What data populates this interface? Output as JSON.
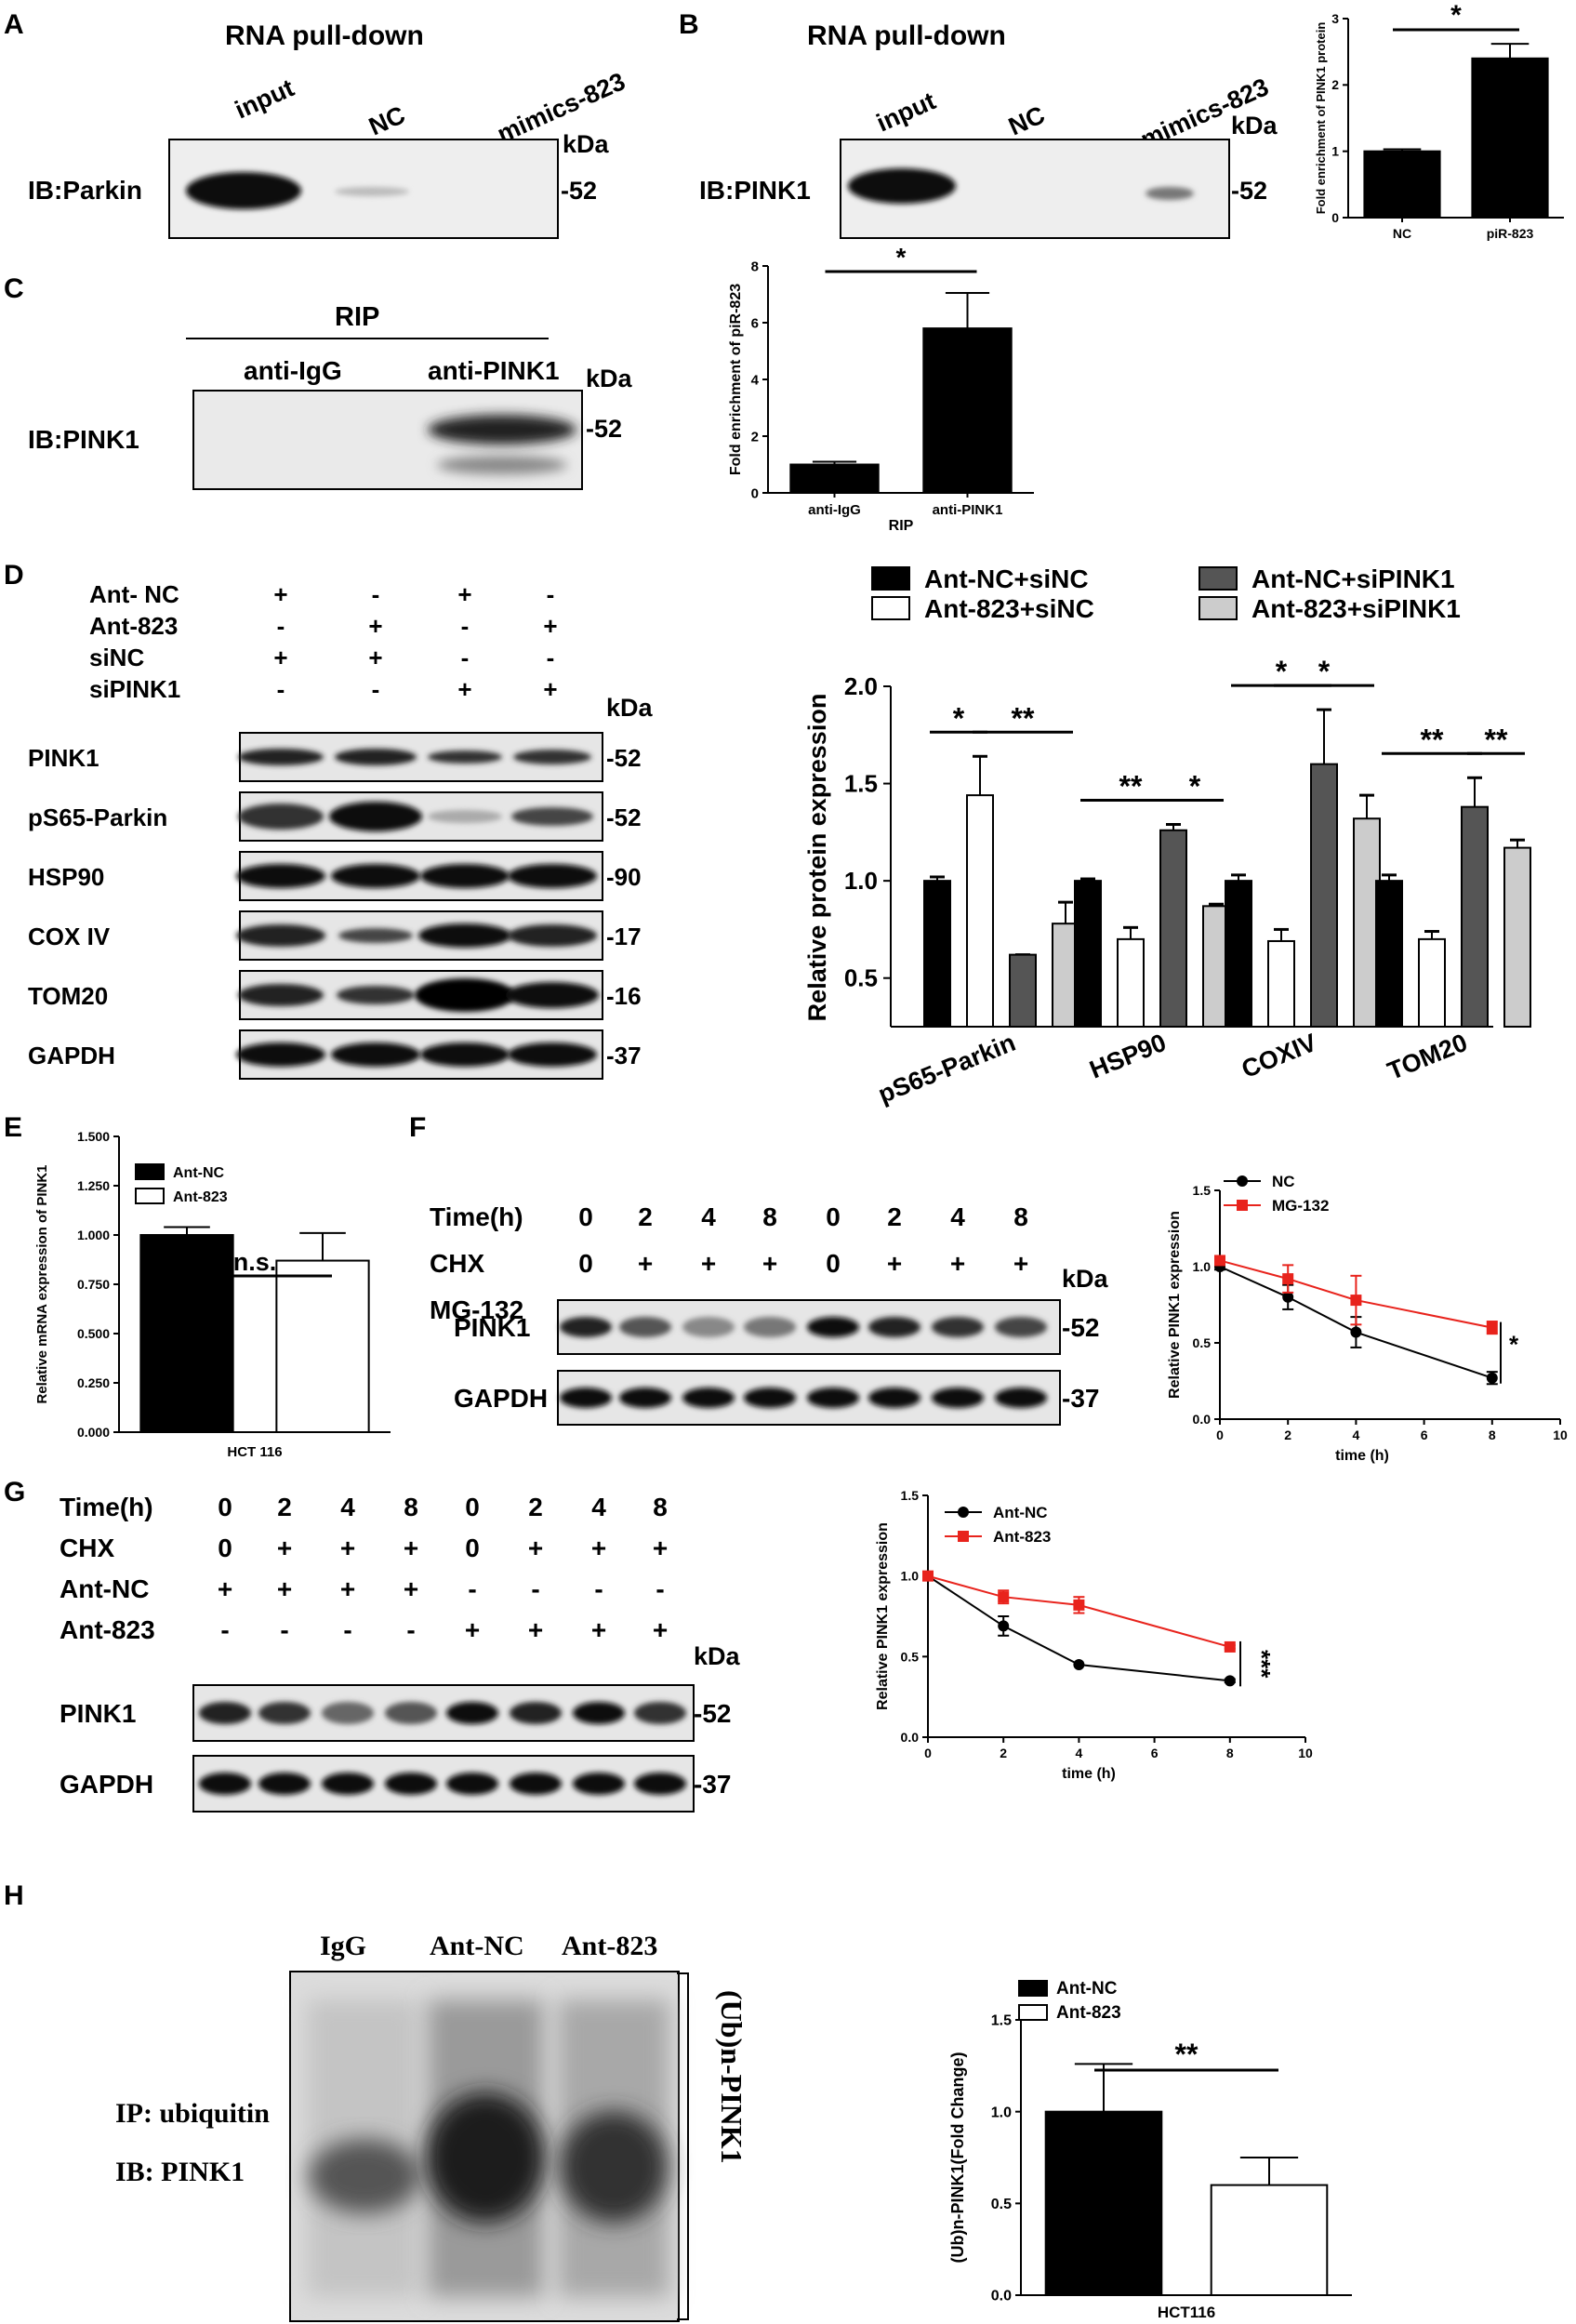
{
  "figure": {
    "panels": {
      "A": {
        "label": "A",
        "title": "RNA pull-down",
        "lanes": [
          "input",
          "NC",
          "mimics-823"
        ],
        "ib": "IB:Parkin",
        "kda": "kDa",
        "marker": "-52"
      },
      "B": {
        "label": "B",
        "title": "RNA pull-down",
        "lanes": [
          "input",
          "NC",
          "mimics-823"
        ],
        "ib": "IB:PINK1",
        "kda": "kDa",
        "marker": "-52"
      },
      "C": {
        "label": "C",
        "title": "RIP",
        "lanes": [
          "anti-IgG",
          "anti-PINK1"
        ],
        "ib": "IB:PINK1",
        "kda": "kDa",
        "marker": "-52"
      },
      "D": {
        "label": "D",
        "conditions": [
          {
            "name": "Ant- NC",
            "marks": [
              "+",
              "-",
              "+",
              "-"
            ]
          },
          {
            "name": "Ant-823",
            "marks": [
              "-",
              "+",
              "-",
              "+"
            ]
          },
          {
            "name": "siNC",
            "marks": [
              "+",
              "+",
              "-",
              "-"
            ]
          },
          {
            "name": "siPINK1",
            "marks": [
              "-",
              "-",
              "+",
              "+"
            ]
          }
        ],
        "kda": "kDa",
        "blots": [
          {
            "name": "PINK1",
            "marker": "-52"
          },
          {
            "name": "pS65-Parkin",
            "marker": "-52"
          },
          {
            "name": "HSP90",
            "marker": "-90"
          },
          {
            "name": "COX IV",
            "marker": "-17"
          },
          {
            "name": "TOM20",
            "marker": "-16"
          },
          {
            "name": "GAPDH",
            "marker": "-37"
          }
        ]
      },
      "E": {
        "label": "E"
      },
      "F": {
        "label": "F",
        "rows": [
          {
            "name": "Time(h)",
            "marks": [
              "0",
              "2",
              "4",
              "8",
              "0",
              "2",
              "4",
              "8"
            ]
          },
          {
            "name": "CHX",
            "marks": [
              "0",
              "+",
              "+",
              "+",
              "0",
              "+",
              "+",
              "+"
            ]
          },
          {
            "name": "MG-132",
            "marks": [
              "-",
              "-",
              "-",
              "-",
              "+",
              "+",
              "+",
              "+"
            ]
          }
        ],
        "kda": "kDa",
        "blots": [
          {
            "name": "PINK1",
            "marker": "-52"
          },
          {
            "name": "GAPDH",
            "marker": "-37"
          }
        ]
      },
      "G": {
        "label": "G",
        "rows": [
          {
            "name": "Time(h)",
            "marks": [
              "0",
              "2",
              "4",
              "8",
              "0",
              "2",
              "4",
              "8"
            ]
          },
          {
            "name": "CHX",
            "marks": [
              "0",
              "+",
              "+",
              "+",
              "0",
              "+",
              "+",
              "+"
            ]
          },
          {
            "name": "Ant-NC",
            "marks": [
              "+",
              "+",
              "+",
              "+",
              "-",
              "-",
              "-",
              "-"
            ]
          },
          {
            "name": "Ant-823",
            "marks": [
              "-",
              "-",
              "-",
              "-",
              "+",
              "+",
              "+",
              "+"
            ]
          }
        ],
        "kda": "kDa",
        "blots": [
          {
            "name": "PINK1",
            "marker": "-52"
          },
          {
            "name": "GAPDH",
            "marker": "-37"
          }
        ]
      },
      "H": {
        "label": "H",
        "lanes": [
          "IgG",
          "Ant-NC",
          "Ant-823"
        ],
        "ip": "IP: ubiquitin",
        "ib": "IB: PINK1",
        "side_label": "(Ub)n-PINK1"
      }
    }
  },
  "chart_data": [
    {
      "id": "B",
      "type": "bar",
      "categories": [
        "NC",
        "piR-823"
      ],
      "values": [
        1.0,
        2.4
      ],
      "errors": [
        0.03,
        0.22
      ],
      "ylabel": "Fold enrichment of PINK1 protein",
      "ylim": [
        0,
        3
      ],
      "yticks": [
        "0",
        "1",
        "2",
        "3"
      ],
      "fills": [
        "#000000",
        "#000000"
      ],
      "significance": [
        {
          "from": 0,
          "to": 1,
          "label": "*"
        }
      ]
    },
    {
      "id": "C",
      "type": "bar",
      "categories": [
        "anti-IgG",
        "anti-PINK1"
      ],
      "values": [
        1.0,
        5.8
      ],
      "errors": [
        0.1,
        1.25
      ],
      "ylabel": "Fold enrichment of piR-823",
      "xlabel": "RIP",
      "ylim": [
        0,
        8
      ],
      "yticks": [
        "0",
        "2",
        "4",
        "6",
        "8"
      ],
      "fills": [
        "#000000",
        "#000000"
      ],
      "significance": [
        {
          "from": 0,
          "to": 1,
          "label": "*"
        }
      ]
    },
    {
      "id": "D",
      "type": "bar",
      "categories": [
        "pS65-Parkin",
        "HSP90",
        "COXIV",
        "TOM20"
      ],
      "series": [
        {
          "name": "Ant-NC+siNC",
          "values": [
            1.0,
            1.0,
            1.0,
            1.0
          ],
          "errors": [
            0.02,
            0.01,
            0.03,
            0.03
          ],
          "color": "#000000"
        },
        {
          "name": "Ant-823+siNC",
          "values": [
            1.44,
            0.7,
            0.69,
            0.7
          ],
          "errors": [
            0.2,
            0.06,
            0.06,
            0.04
          ],
          "color": "#ffffff"
        },
        {
          "name": "Ant-NC+siPINK1",
          "values": [
            0.62,
            1.26,
            1.6,
            1.38
          ],
          "errors": [
            0.0,
            0.03,
            0.28,
            0.15
          ],
          "color": "#555555"
        },
        {
          "name": "Ant-823+siPINK1",
          "values": [
            0.78,
            0.87,
            1.32,
            1.17
          ],
          "errors": [
            0.11,
            0.01,
            0.12,
            0.04
          ],
          "color": "#cccccc"
        }
      ],
      "ylabel": "Relative protein expression",
      "ylim": [
        0.25,
        2.0
      ],
      "yticks": [
        "0.5",
        "1.0",
        "1.5",
        "2.0"
      ],
      "legend": "top",
      "significance": [
        {
          "group": 0,
          "from": 0,
          "to": 1,
          "label": "*"
        },
        {
          "group": 0,
          "from": 1,
          "to": 3,
          "label": "**"
        },
        {
          "group": 1,
          "from": 0,
          "to": 2,
          "label": "**"
        },
        {
          "group": 1,
          "from": 2,
          "to": 3,
          "label": "*"
        },
        {
          "group": 2,
          "from": 0,
          "to": 2,
          "label": "*"
        },
        {
          "group": 2,
          "from": 1,
          "to": 3,
          "label": "*"
        },
        {
          "group": 3,
          "from": 0,
          "to": 2,
          "label": "**"
        },
        {
          "group": 3,
          "from": 2,
          "to": 3,
          "label": "**"
        }
      ]
    },
    {
      "id": "E",
      "type": "bar",
      "categories": [
        "Ant-NC",
        "Ant-823"
      ],
      "xlabel": "HCT 116",
      "values": [
        1.0,
        0.87
      ],
      "errors": [
        0.04,
        0.14
      ],
      "ylabel": "Relative mRNA expression of PINK1",
      "ylim": [
        0,
        1.5
      ],
      "yticks": [
        "0.000",
        "0.250",
        "0.500",
        "0.750",
        "1.000",
        "1.250",
        "1.500"
      ],
      "fills": [
        "#000000",
        "#ffffff"
      ],
      "legend": "top-left",
      "significance": [
        {
          "from": 0,
          "to": 1,
          "label": "n.s."
        }
      ]
    },
    {
      "id": "F",
      "type": "line",
      "series": [
        {
          "name": "NC",
          "x": [
            0,
            2,
            4,
            8
          ],
          "y": [
            1.0,
            0.8,
            0.57,
            0.27
          ],
          "errors": [
            0.02,
            0.08,
            0.1,
            0.04
          ],
          "color": "#000000",
          "marker": "circle"
        },
        {
          "name": "MG-132",
          "x": [
            0,
            2,
            4,
            8
          ],
          "y": [
            1.04,
            0.92,
            0.78,
            0.6
          ],
          "errors": [
            0.02,
            0.09,
            0.16,
            0.04
          ],
          "color": "#e8231c",
          "marker": "square"
        }
      ],
      "xlabel": "time (h)",
      "ylabel": "Relative PINK1 expression",
      "xlim": [
        0,
        10
      ],
      "ylim": [
        0,
        1.5
      ],
      "xticks": [
        "0",
        "2",
        "4",
        "6",
        "8",
        "10"
      ],
      "yticks": [
        "0.0",
        "0.5",
        "1.0",
        "1.5"
      ],
      "legend": "top-left",
      "significance": "*"
    },
    {
      "id": "G",
      "type": "line",
      "series": [
        {
          "name": "Ant-NC",
          "x": [
            0,
            2,
            4,
            8
          ],
          "y": [
            1.0,
            0.69,
            0.45,
            0.35
          ],
          "errors": [
            0.0,
            0.06,
            0.0,
            0.01
          ],
          "color": "#000000",
          "marker": "circle"
        },
        {
          "name": "Ant-823",
          "x": [
            0,
            2,
            4,
            8
          ],
          "y": [
            1.0,
            0.87,
            0.82,
            0.56
          ],
          "errors": [
            0.0,
            0.04,
            0.05,
            0.01
          ],
          "color": "#e8231c",
          "marker": "square"
        }
      ],
      "xlabel": "time (h)",
      "ylabel": "Relative PINK1 expression",
      "xlim": [
        0,
        10
      ],
      "ylim": [
        0,
        1.5
      ],
      "xticks": [
        "0",
        "2",
        "4",
        "6",
        "8",
        "10"
      ],
      "yticks": [
        "0.0",
        "0.5",
        "1.0",
        "1.5"
      ],
      "legend": "top-left",
      "significance": "***"
    },
    {
      "id": "H",
      "type": "bar",
      "categories": [
        "Ant-NC",
        "Ant-823"
      ],
      "xlabel": "HCT116",
      "values": [
        1.0,
        0.6
      ],
      "errors": [
        0.26,
        0.15
      ],
      "ylabel": "(Ub)n-PINK1(Fold Change)",
      "ylim": [
        0,
        1.5
      ],
      "yticks": [
        "0.0",
        "0.5",
        "1.0",
        "1.5"
      ],
      "fills": [
        "#000000",
        "#ffffff"
      ],
      "legend": "top-left",
      "significance": [
        {
          "from": 0,
          "to": 1,
          "label": "**"
        }
      ]
    }
  ]
}
